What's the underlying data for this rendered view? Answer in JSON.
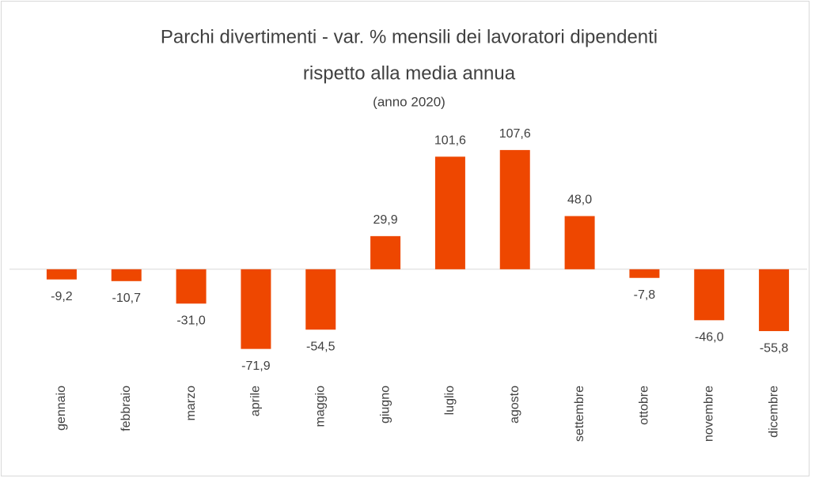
{
  "chart_data": {
    "type": "bar",
    "title": [
      "Parchi divertimenti - var. % mensili dei lavoratori dipendenti",
      "rispetto alla media annua"
    ],
    "subtitle": "(anno 2020)",
    "categories": [
      "gennaio",
      "febbraio",
      "marzo",
      "aprile",
      "maggio",
      "giugno",
      "luglio",
      "agosto",
      "settembre",
      "ottobre",
      "novembre",
      "dicembre"
    ],
    "values": [
      -9.2,
      -10.7,
      -31.0,
      -71.9,
      -54.5,
      29.9,
      101.6,
      107.6,
      48.0,
      -7.8,
      -46.0,
      -55.8
    ],
    "value_labels": [
      "-9,2",
      "-10,7",
      "-31,0",
      "-71,9",
      "-54,5",
      "29,9",
      "101,6",
      "107,6",
      "48,0",
      "-7,8",
      "-46,0",
      "-55,8"
    ],
    "color": "#ee4700",
    "ylim": [
      -80,
      120
    ]
  }
}
